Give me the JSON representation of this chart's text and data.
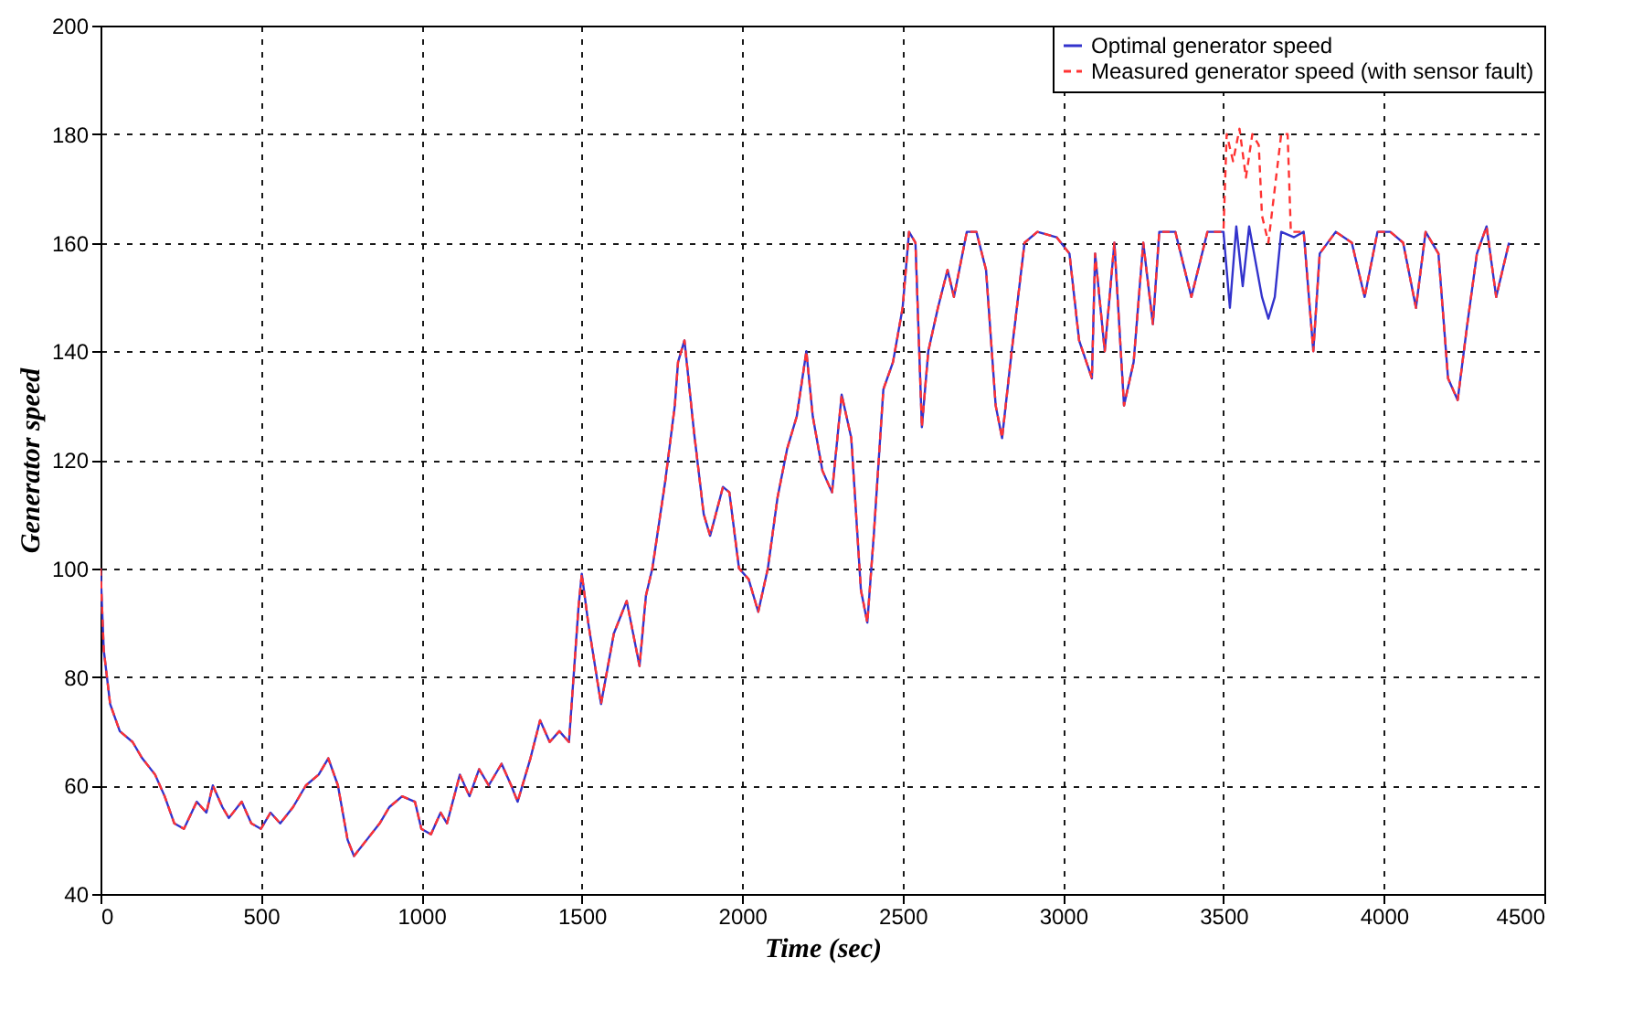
{
  "chart_data": {
    "type": "line",
    "xlabel": "Time (sec)",
    "ylabel": "Generator speed",
    "xlim": [
      0,
      4500
    ],
    "ylim": [
      40,
      200
    ],
    "xticks": [
      0,
      500,
      1000,
      1500,
      2000,
      2500,
      3000,
      3500,
      4000,
      4500
    ],
    "yticks": [
      40,
      60,
      80,
      100,
      120,
      140,
      160,
      180,
      200
    ],
    "grid": true,
    "legend": "top right",
    "x": [
      0,
      10,
      30,
      60,
      100,
      130,
      170,
      200,
      230,
      260,
      300,
      330,
      350,
      380,
      400,
      440,
      470,
      500,
      530,
      560,
      600,
      640,
      680,
      710,
      740,
      770,
      790,
      830,
      870,
      900,
      940,
      980,
      1000,
      1030,
      1060,
      1080,
      1120,
      1150,
      1180,
      1210,
      1250,
      1280,
      1300,
      1340,
      1370,
      1400,
      1430,
      1460,
      1490,
      1500,
      1520,
      1560,
      1600,
      1640,
      1680,
      1700,
      1720,
      1760,
      1790,
      1800,
      1820,
      1850,
      1880,
      1900,
      1940,
      1960,
      1990,
      2020,
      2050,
      2080,
      2110,
      2140,
      2170,
      2200,
      2220,
      2250,
      2280,
      2310,
      2340,
      2370,
      2390,
      2410,
      2440,
      2470,
      2500,
      2520,
      2540,
      2560,
      2580,
      2610,
      2640,
      2660,
      2700,
      2730,
      2760,
      2790,
      2810,
      2840,
      2880,
      2920,
      2980,
      3020,
      3050,
      3090,
      3100,
      3130,
      3160,
      3190,
      3220,
      3250,
      3280,
      3300,
      3350,
      3400,
      3450,
      3500,
      3520,
      3540,
      3560,
      3580,
      3620,
      3640,
      3660,
      3680,
      3720,
      3750,
      3780,
      3800,
      3850,
      3900,
      3940,
      3980,
      4020,
      4060,
      4100,
      4130,
      4170,
      4200,
      4230,
      4260,
      4290,
      4320,
      4350,
      4390
    ],
    "series": [
      {
        "name": "Optimal generator speed",
        "color": "#3333cc",
        "line_style": "solid",
        "values": [
          100,
          85,
          75,
          70,
          68,
          65,
          62,
          58,
          53,
          52,
          57,
          55,
          60,
          56,
          54,
          57,
          53,
          52,
          55,
          53,
          56,
          60,
          62,
          65,
          60,
          50,
          47,
          50,
          53,
          56,
          58,
          57,
          52,
          51,
          55,
          53,
          62,
          58,
          63,
          60,
          64,
          60,
          57,
          65,
          72,
          68,
          70,
          68,
          93,
          99,
          90,
          75,
          88,
          94,
          82,
          95,
          100,
          116,
          130,
          138,
          142,
          125,
          110,
          106,
          115,
          114,
          100,
          98,
          92,
          100,
          113,
          122,
          128,
          140,
          128,
          118,
          114,
          132,
          124,
          96,
          90,
          106,
          133,
          138,
          148,
          162,
          160,
          126,
          140,
          148,
          155,
          150,
          162,
          162,
          155,
          130,
          124,
          140,
          160,
          162,
          161,
          158,
          142,
          135,
          158,
          140,
          160,
          130,
          138,
          160,
          145,
          162,
          162,
          150,
          162,
          162,
          148,
          163,
          152,
          163,
          150,
          146,
          150,
          162,
          161,
          162,
          140,
          158,
          162,
          160,
          150,
          162,
          162,
          160,
          148,
          162,
          158,
          135,
          131,
          145,
          158,
          163,
          150,
          160
        ]
      },
      {
        "name": "Measured generator speed (with sensor fault)",
        "color": "#ff3333",
        "line_style": "dashed",
        "x": [
          0,
          10,
          30,
          60,
          100,
          130,
          170,
          200,
          230,
          260,
          300,
          330,
          350,
          380,
          400,
          440,
          470,
          500,
          530,
          560,
          600,
          640,
          680,
          710,
          740,
          770,
          790,
          830,
          870,
          900,
          940,
          980,
          1000,
          1030,
          1060,
          1080,
          1120,
          1150,
          1180,
          1210,
          1250,
          1280,
          1300,
          1340,
          1370,
          1400,
          1430,
          1460,
          1490,
          1500,
          1520,
          1560,
          1600,
          1640,
          1680,
          1700,
          1720,
          1760,
          1790,
          1800,
          1820,
          1850,
          1880,
          1900,
          1940,
          1960,
          1990,
          2020,
          2050,
          2080,
          2110,
          2140,
          2170,
          2200,
          2220,
          2250,
          2280,
          2310,
          2340,
          2370,
          2390,
          2410,
          2440,
          2470,
          2500,
          2520,
          2540,
          2560,
          2580,
          2610,
          2640,
          2660,
          2700,
          2730,
          2760,
          2790,
          2810,
          2840,
          2880,
          2920,
          2980,
          3020,
          3050,
          3090,
          3100,
          3130,
          3160,
          3190,
          3220,
          3250,
          3280,
          3300,
          3350,
          3400,
          3450,
          3500,
          3510,
          3530,
          3550,
          3570,
          3590,
          3610,
          3620,
          3640,
          3660,
          3680,
          3700,
          3710,
          3750,
          3780,
          3800,
          3850,
          3900,
          3940,
          3980,
          4020,
          4060,
          4100,
          4130,
          4170,
          4200,
          4230,
          4260,
          4290,
          4320,
          4350,
          4390
        ],
        "values": [
          100,
          85,
          75,
          70,
          68,
          65,
          62,
          58,
          53,
          52,
          57,
          55,
          60,
          56,
          54,
          57,
          53,
          52,
          55,
          53,
          56,
          60,
          62,
          65,
          60,
          50,
          47,
          50,
          53,
          56,
          58,
          57,
          52,
          51,
          55,
          53,
          62,
          58,
          63,
          60,
          64,
          60,
          57,
          65,
          72,
          68,
          70,
          68,
          93,
          99,
          90,
          75,
          88,
          94,
          82,
          95,
          100,
          116,
          130,
          138,
          142,
          125,
          110,
          106,
          115,
          114,
          100,
          98,
          92,
          100,
          113,
          122,
          128,
          140,
          128,
          118,
          114,
          132,
          124,
          96,
          90,
          106,
          133,
          138,
          148,
          162,
          160,
          126,
          140,
          148,
          155,
          150,
          162,
          162,
          155,
          130,
          124,
          140,
          160,
          162,
          161,
          158,
          142,
          135,
          158,
          140,
          160,
          130,
          138,
          160,
          145,
          162,
          162,
          150,
          162,
          162,
          180,
          175,
          181,
          172,
          180,
          178,
          165,
          160,
          170,
          180,
          180,
          162,
          162,
          140,
          158,
          162,
          160,
          150,
          162,
          162,
          160,
          148,
          162,
          158,
          135,
          131,
          145,
          158,
          163,
          150,
          160
        ]
      }
    ]
  }
}
